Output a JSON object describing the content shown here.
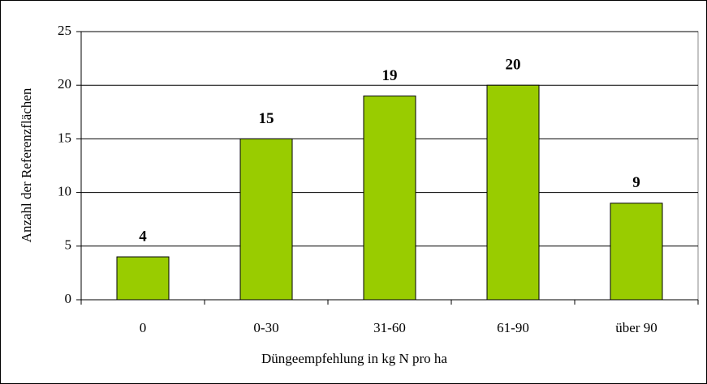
{
  "chart_data": {
    "type": "bar",
    "categories": [
      "0",
      "0-30",
      "31-60",
      "61-90",
      "über 90"
    ],
    "values": [
      4,
      15,
      19,
      20,
      9
    ],
    "color": "#99cc00",
    "ylim": [
      0,
      25
    ],
    "yticks": [
      0,
      5,
      10,
      15,
      20,
      25
    ],
    "grid": true,
    "y_label": "Anzahl der Referenzflächen",
    "x_label": "Düngeempfehlung in kg N pro ha"
  }
}
